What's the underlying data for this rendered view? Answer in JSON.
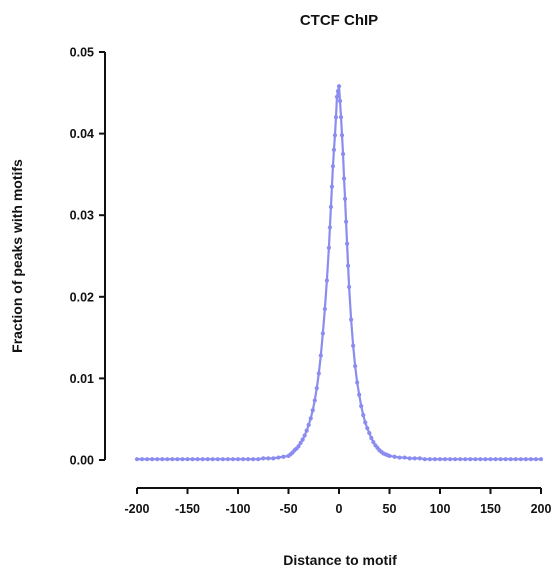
{
  "chart_data": {
    "type": "line",
    "title": "CTCF ChIP",
    "xlabel": "Distance to motif",
    "ylabel": "Fraction of peaks with motifs",
    "xlim": [
      -200,
      200
    ],
    "ylim": [
      0,
      0.05
    ],
    "x_ticks": [
      "-200",
      "-150",
      "-100",
      "-50",
      "0",
      "50",
      "100",
      "150",
      "200"
    ],
    "y_ticks": [
      "0.00",
      "0.01",
      "0.02",
      "0.03",
      "0.04",
      "0.05"
    ],
    "grid": false,
    "legend": "none",
    "colors": {
      "line": "#8b8cf0",
      "axis": "#111111"
    },
    "series": [
      {
        "x": [
          -200,
          -195,
          -190,
          -185,
          -180,
          -175,
          -170,
          -165,
          -160,
          -155,
          -150,
          -145,
          -140,
          -135,
          -130,
          -125,
          -120,
          -115,
          -110,
          -105,
          -100,
          -95,
          -90,
          -85,
          -80,
          -75,
          -70,
          -65,
          -60,
          -55,
          -50,
          -48,
          -46,
          -44,
          -42,
          -40,
          -38,
          -36,
          -34,
          -32,
          -30,
          -28,
          -26,
          -24,
          -22,
          -20,
          -18,
          -16,
          -14,
          -12,
          -10,
          -9,
          -8,
          -7,
          -6,
          -5,
          -4,
          -3,
          -2,
          -1,
          0,
          1,
          2,
          3,
          4,
          5,
          6,
          7,
          8,
          9,
          10,
          12,
          14,
          16,
          18,
          20,
          22,
          24,
          26,
          28,
          30,
          32,
          34,
          36,
          38,
          40,
          42,
          44,
          46,
          48,
          50,
          55,
          60,
          65,
          70,
          75,
          80,
          85,
          90,
          95,
          100,
          105,
          110,
          115,
          120,
          125,
          130,
          135,
          140,
          145,
          150,
          155,
          160,
          165,
          170,
          175,
          180,
          185,
          190,
          195,
          200
        ],
        "y": [
          0.0001,
          0.0001,
          0.0001,
          0.0001,
          0.0001,
          0.0001,
          0.0001,
          0.0001,
          0.0001,
          0.0001,
          0.0001,
          0.0001,
          0.0001,
          0.0001,
          0.0001,
          0.0001,
          0.0001,
          0.0001,
          0.0001,
          0.0001,
          0.0001,
          0.0001,
          0.0001,
          0.0001,
          0.0001,
          0.0002,
          0.0002,
          0.0002,
          0.0003,
          0.0004,
          0.0005,
          0.0007,
          0.0009,
          0.0012,
          0.0014,
          0.0017,
          0.0021,
          0.0025,
          0.003,
          0.0036,
          0.0043,
          0.0051,
          0.0061,
          0.0073,
          0.0088,
          0.0106,
          0.0128,
          0.0155,
          0.0185,
          0.022,
          0.026,
          0.0285,
          0.031,
          0.0335,
          0.036,
          0.038,
          0.0398,
          0.042,
          0.0445,
          0.0452,
          0.0458,
          0.044,
          0.042,
          0.0398,
          0.0375,
          0.0345,
          0.032,
          0.0292,
          0.0265,
          0.0238,
          0.0212,
          0.0172,
          0.014,
          0.0115,
          0.0095,
          0.008,
          0.0066,
          0.0055,
          0.0046,
          0.0039,
          0.0033,
          0.0027,
          0.0022,
          0.0018,
          0.0015,
          0.0012,
          0.001,
          0.0008,
          0.0007,
          0.0006,
          0.0005,
          0.0004,
          0.0003,
          0.0003,
          0.0002,
          0.0002,
          0.0002,
          0.0001,
          0.0001,
          0.0001,
          0.0001,
          0.0001,
          0.0001,
          0.0001,
          0.0001,
          0.0001,
          0.0001,
          0.0001,
          0.0001,
          0.0001,
          0.0001,
          0.0001,
          0.0001,
          0.0001,
          0.0001,
          0.0001,
          0.0001,
          0.0001,
          0.0001,
          0.0001,
          0.0001
        ]
      }
    ]
  }
}
